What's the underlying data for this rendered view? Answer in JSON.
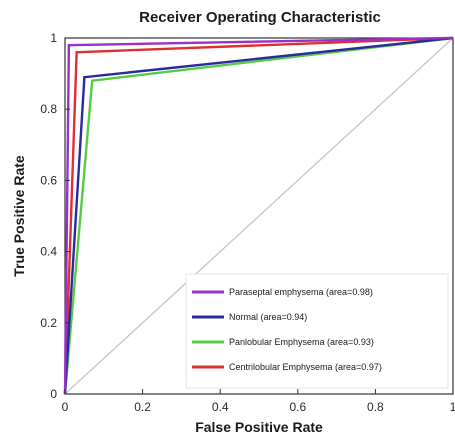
{
  "chart_data": {
    "type": "line",
    "title": "Receiver Operating Characteristic",
    "xlabel": "False Positive Rate",
    "ylabel": "True Positive Rate",
    "xlim": [
      0,
      1
    ],
    "ylim": [
      0,
      1
    ],
    "x_ticks": [
      0,
      0.2,
      0.4,
      0.6,
      0.8,
      1
    ],
    "x_tick_labels": [
      "0",
      "0.2",
      "0.4",
      "0.6",
      "0.8",
      "1"
    ],
    "y_ticks": [
      0,
      0.2,
      0.4,
      0.6,
      0.8,
      1
    ],
    "y_tick_labels": [
      "0",
      "0.2",
      "0.4",
      "0.6",
      "0.8",
      "1"
    ],
    "grid": false,
    "legend_position": "lower-right",
    "diagonal": {
      "x": [
        0,
        1
      ],
      "y": [
        0,
        1
      ],
      "color": "#c8c8c8"
    },
    "series": [
      {
        "name": "Paraseptal emphysema (area=0.98)",
        "color": "#9b30c8",
        "x": [
          0,
          0.01,
          1
        ],
        "y": [
          0,
          0.98,
          1
        ]
      },
      {
        "name": "Normal (area=0.94)",
        "color": "#2a2aa0",
        "x": [
          0,
          0.05,
          1
        ],
        "y": [
          0,
          0.89,
          1
        ]
      },
      {
        "name": "Panlobular Emphysema (area=0.93)",
        "color": "#55cc44",
        "x": [
          0,
          0.07,
          1
        ],
        "y": [
          0,
          0.88,
          1
        ]
      },
      {
        "name": "Centrilobular Emphysema (area=0.97)",
        "color": "#dd3030",
        "x": [
          0,
          0.03,
          1
        ],
        "y": [
          0,
          0.96,
          1
        ]
      }
    ]
  }
}
